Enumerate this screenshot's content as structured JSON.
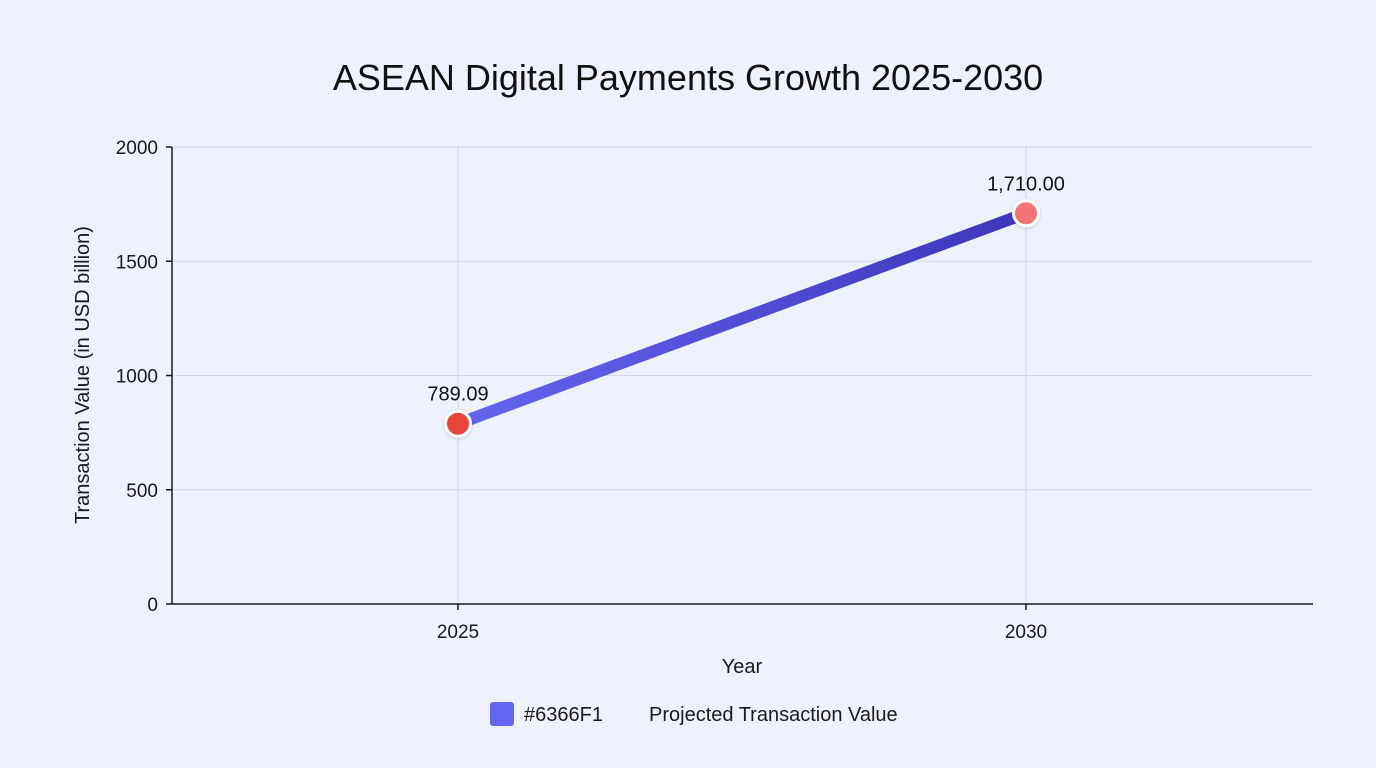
{
  "chart_data": {
    "type": "line",
    "title": "ASEAN Digital Payments Growth 2025-2030",
    "xlabel": "Year",
    "ylabel": "Transaction Value (in USD billion)",
    "categories": [
      "2025",
      "2030"
    ],
    "ylim": [
      0,
      2000
    ],
    "yticks": [
      0,
      500,
      1000,
      1500,
      2000
    ],
    "y_tick_labels": [
      "0",
      "500",
      "1000",
      "1500",
      "2000"
    ],
    "grid": true,
    "legend_position": "bottom",
    "series": [
      {
        "name": "Projected Transaction Value",
        "values": [
          789.09,
          1710.0
        ],
        "data_labels": [
          "789.09",
          "1,710.00"
        ],
        "color": "#6366F1",
        "line_gradient_end": "#3F35B8",
        "marker_colors": [
          "#E8443E",
          "#F27474"
        ]
      }
    ],
    "legend": [
      {
        "swatch_color": "#6366F1",
        "color_text": "#6366F1",
        "label": "Projected Transaction Value"
      }
    ]
  }
}
